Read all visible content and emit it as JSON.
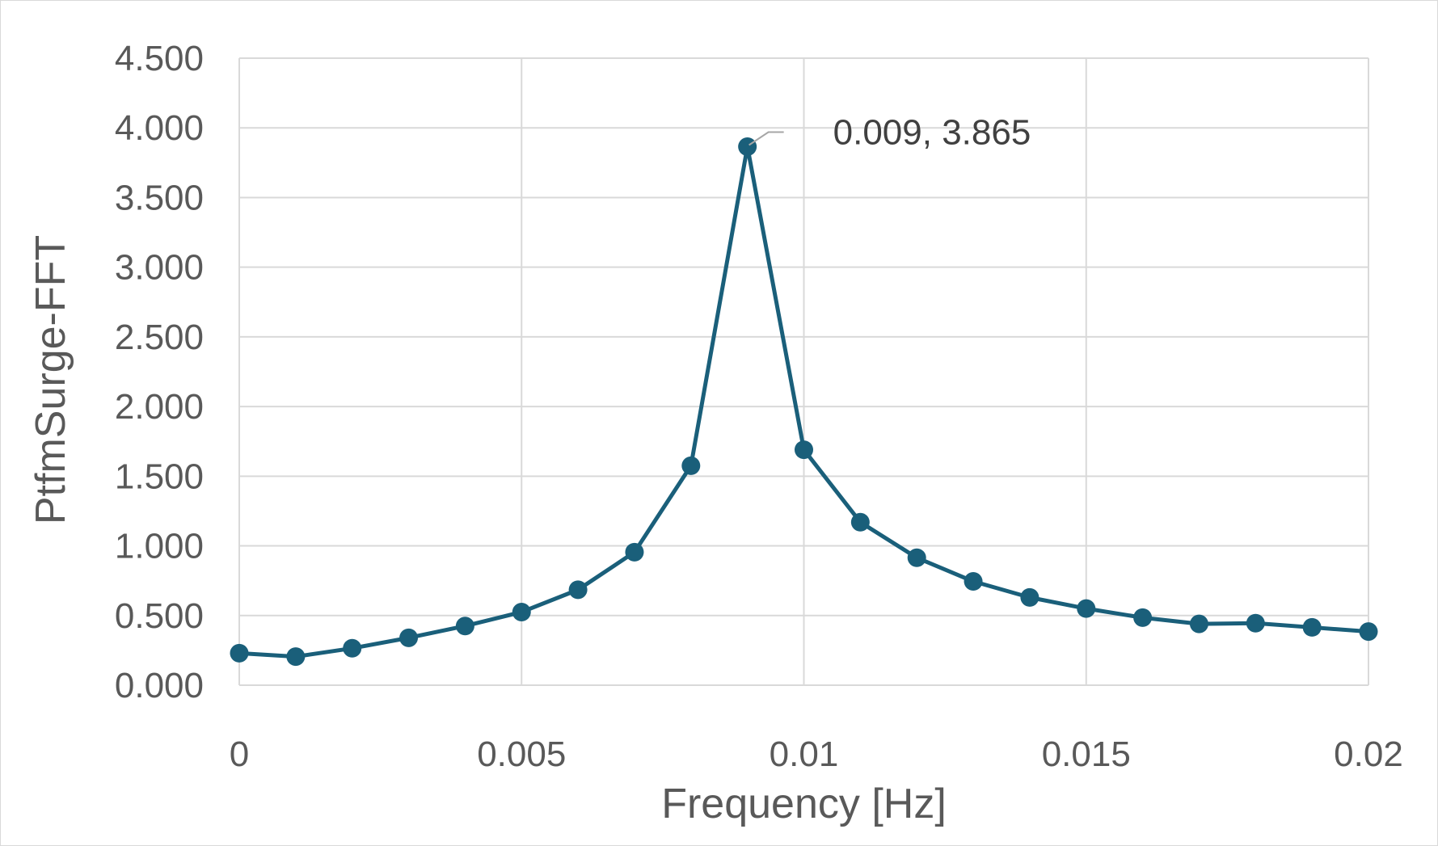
{
  "chart_data": {
    "type": "line",
    "title": "",
    "xlabel": "Frequency [Hz]",
    "ylabel": "PtfmSurge-FFT",
    "xlim": [
      0,
      0.02
    ],
    "ylim": [
      0,
      4.5
    ],
    "x_ticks": [
      "0",
      "0.005",
      "0.01",
      "0.015",
      "0.02"
    ],
    "y_ticks": [
      "0.000",
      "0.500",
      "1.000",
      "1.500",
      "2.000",
      "2.500",
      "3.000",
      "3.500",
      "4.000",
      "4.500"
    ],
    "grid": true,
    "legend": "none",
    "series": [
      {
        "color": "#1a5f7a",
        "marker": "circle",
        "points": [
          {
            "x": 0.0,
            "y": 0.23
          },
          {
            "x": 0.001,
            "y": 0.205
          },
          {
            "x": 0.002,
            "y": 0.265
          },
          {
            "x": 0.003,
            "y": 0.34
          },
          {
            "x": 0.004,
            "y": 0.425
          },
          {
            "x": 0.005,
            "y": 0.525
          },
          {
            "x": 0.006,
            "y": 0.685
          },
          {
            "x": 0.007,
            "y": 0.955
          },
          {
            "x": 0.008,
            "y": 1.575
          },
          {
            "x": 0.009,
            "y": 3.865
          },
          {
            "x": 0.01,
            "y": 1.69
          },
          {
            "x": 0.011,
            "y": 1.17
          },
          {
            "x": 0.012,
            "y": 0.915
          },
          {
            "x": 0.013,
            "y": 0.745
          },
          {
            "x": 0.014,
            "y": 0.63
          },
          {
            "x": 0.015,
            "y": 0.55
          },
          {
            "x": 0.016,
            "y": 0.485
          },
          {
            "x": 0.017,
            "y": 0.44
          },
          {
            "x": 0.018,
            "y": 0.445
          },
          {
            "x": 0.019,
            "y": 0.415
          },
          {
            "x": 0.02,
            "y": 0.385
          }
        ]
      }
    ],
    "annotation": {
      "x": 0.009,
      "y": 3.865,
      "text": "0.009, 3.865"
    }
  }
}
